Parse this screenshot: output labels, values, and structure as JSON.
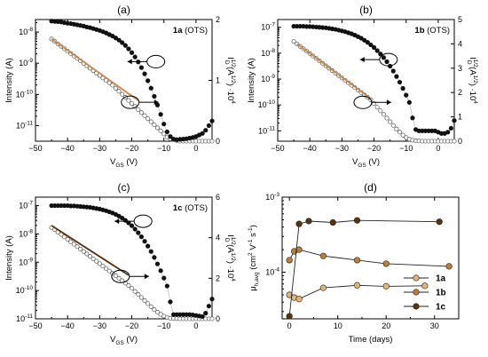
{
  "figure": {
    "panels": [
      {
        "id": "a",
        "letter": "(a)",
        "annotation": {
          "prefix": "1a",
          "suffix": " (OTS)"
        },
        "ylabel": "Intensity (A)",
        "xlabel": "V",
        "xlabel_sub": "GS",
        "xlabel_unit": " (V)",
        "right_label": "I",
        "right_label_sup": "1/2",
        "right_label_mid": " (A",
        "right_label_sup2": "1/2",
        "right_label_tail": ") ·10",
        "right_label_exp": "4",
        "right_label_sub": "D",
        "x_ticks": [
          "−50",
          "−40",
          "−30",
          "−20",
          "−10",
          "0"
        ],
        "y_ticks": [
          {
            "mant": "10",
            "exp": "-8"
          },
          {
            "mant": "10",
            "exp": "-9"
          },
          {
            "mant": "10",
            "exp": "-10"
          },
          {
            "mant": "10",
            "exp": "-11"
          }
        ],
        "y2_ticks": [
          "2",
          "1",
          "0"
        ]
      },
      {
        "id": "b",
        "letter": "(b)",
        "annotation": {
          "prefix": "1b",
          "suffix": " (OTS)"
        },
        "ylabel": "Intensity (A)",
        "xlabel": "V",
        "xlabel_sub": "GS",
        "xlabel_unit": " (V)",
        "right_label": "I",
        "right_label_sup": "1/2",
        "right_label_mid": " (A",
        "right_label_sup2": "1/2",
        "right_label_tail": ") ·10",
        "right_label_exp": "4",
        "right_label_sub": "D",
        "x_ticks": [
          "−50",
          "−40",
          "−30",
          "−20",
          "−10",
          "0"
        ],
        "y_ticks": [
          {
            "mant": "10",
            "exp": "-7"
          },
          {
            "mant": "10",
            "exp": "-8"
          },
          {
            "mant": "10",
            "exp": "-9"
          },
          {
            "mant": "10",
            "exp": "-10"
          },
          {
            "mant": "10",
            "exp": "-11"
          }
        ],
        "y2_ticks": [
          "5",
          "4",
          "3",
          "2",
          "1",
          "0"
        ]
      },
      {
        "id": "c",
        "letter": "(c)",
        "annotation": {
          "prefix": "1c",
          "suffix": " (OTS)"
        },
        "ylabel": "Intensity (A)",
        "xlabel": "V",
        "xlabel_sub": "GS",
        "xlabel_unit": " (V)",
        "right_label": "I",
        "right_label_sup": "1/2",
        "right_label_mid": " (A",
        "right_label_sup2": "1/2",
        "right_label_tail": ") ·10",
        "right_label_exp": "4",
        "right_label_sub": "D",
        "x_ticks": [
          "−50",
          "−40",
          "−30",
          "−20",
          "−10",
          "0"
        ],
        "y_ticks": [
          {
            "mant": "10",
            "exp": "-7"
          },
          {
            "mant": "10",
            "exp": "-8"
          },
          {
            "mant": "10",
            "exp": "-9"
          },
          {
            "mant": "10",
            "exp": "-10"
          },
          {
            "mant": "10",
            "exp": "-11"
          }
        ],
        "y2_ticks": [
          "6",
          "4",
          "2",
          "0"
        ]
      },
      {
        "id": "d",
        "letter": "(d)",
        "ylabel_main": "μ",
        "ylabel_sub": "h,avg",
        "ylabel_unit": " (cm",
        "ylabel_sup1": "2",
        "ylabel_mid": " V",
        "ylabel_sup2": "-1",
        "ylabel_mid2": " s",
        "ylabel_sup3": "-1",
        "ylabel_close": ")",
        "xlabel": "Time (days)",
        "x_ticks": [
          "0",
          "10",
          "20",
          "30"
        ],
        "y_ticks": [
          {
            "mant": "10",
            "exp": "-3"
          },
          {
            "mant": "10",
            "exp": "-4"
          }
        ],
        "legend": [
          "1a",
          "1b",
          "1c"
        ]
      }
    ]
  },
  "chart_data": [
    {
      "type": "scatter",
      "panel": "(a)",
      "xlabel": "VGS (V)",
      "ylabel": "Intensity (A)",
      "y2label": "I_D^1/2 (A^1/2) ·10^4",
      "xlim": [
        -50,
        5
      ],
      "ylim_log": [
        -11.5,
        -7.6
      ],
      "y2lim": [
        0,
        2
      ],
      "series": [
        {
          "name": "Intensity",
          "marker": "filled-circle",
          "axis": "log",
          "x": [
            -45,
            -44,
            -43,
            -42,
            -41,
            -40,
            -39,
            -38,
            -37,
            -36,
            -35,
            -34,
            -33,
            -32,
            -31,
            -30,
            -29,
            -28,
            -27,
            -26,
            -25,
            -24,
            -23,
            -22,
            -21,
            -20,
            -19,
            -18,
            -17,
            -16,
            -15,
            -14,
            -13,
            -12,
            -11,
            -10,
            -9,
            -8,
            -7,
            -6,
            -5,
            -4,
            -3,
            -2,
            -1,
            0,
            1,
            2,
            3,
            4,
            5
          ],
          "y": [
            -7.65,
            -7.66,
            -7.67,
            -7.68,
            -7.7,
            -7.72,
            -7.73,
            -7.75,
            -7.77,
            -7.79,
            -7.81,
            -7.84,
            -7.86,
            -7.89,
            -7.92,
            -7.95,
            -7.99,
            -8.03,
            -8.08,
            -8.13,
            -8.19,
            -8.26,
            -8.34,
            -8.43,
            -8.54,
            -8.66,
            -8.8,
            -8.96,
            -9.14,
            -9.34,
            -9.56,
            -9.8,
            -10.06,
            -10.34,
            -10.64,
            -10.95,
            -11.2,
            -11.35,
            -11.43,
            -11.45,
            -11.44,
            -11.43,
            -11.42,
            -11.4,
            -11.38,
            -11.35,
            -11.3,
            -11.25,
            -11.15,
            -11.0,
            -10.85
          ]
        },
        {
          "name": "sqrt(ID)",
          "marker": "open-circle",
          "axis": "linear",
          "x": [
            -45,
            -44,
            -43,
            -42,
            -41,
            -40,
            -39,
            -38,
            -37,
            -36,
            -35,
            -34,
            -33,
            -32,
            -31,
            -30,
            -29,
            -28,
            -27,
            -26,
            -25,
            -24,
            -23,
            -22,
            -21,
            -20,
            -19,
            -18,
            -17,
            -16,
            -15,
            -14,
            -13,
            -12,
            -11,
            -10,
            -9,
            -8,
            -7,
            -6,
            -5,
            -4,
            -3,
            -2,
            -1,
            0,
            1,
            2,
            3,
            4,
            5
          ],
          "y": [
            1.68,
            1.64,
            1.6,
            1.56,
            1.52,
            1.48,
            1.44,
            1.4,
            1.36,
            1.32,
            1.28,
            1.24,
            1.2,
            1.16,
            1.12,
            1.08,
            1.04,
            1.0,
            0.96,
            0.92,
            0.87,
            0.82,
            0.77,
            0.72,
            0.67,
            0.62,
            0.57,
            0.52,
            0.47,
            0.42,
            0.37,
            0.32,
            0.27,
            0.22,
            0.17,
            0.12,
            0.07,
            0.04,
            0.02,
            0.01,
            0.0,
            0.0,
            0.0,
            0.0,
            0.0,
            0.0,
            0.0,
            0.0,
            0.0,
            0.0,
            0.0
          ]
        },
        {
          "name": "fit",
          "type": "line",
          "axis": "linear",
          "color": "#c8894a",
          "x": [
            -45,
            -18
          ],
          "y": [
            1.68,
            0.67
          ]
        }
      ],
      "annotations": [
        "1a (OTS)"
      ]
    },
    {
      "type": "scatter",
      "panel": "(b)",
      "xlabel": "VGS (V)",
      "ylabel": "Intensity (A)",
      "y2label": "I_D^1/2 (A^1/2) ·10^4",
      "xlim": [
        -50,
        5
      ],
      "ylim_log": [
        -11.4,
        -6.7
      ],
      "y2lim": [
        0,
        5
      ],
      "series": [
        {
          "name": "Intensity",
          "marker": "filled-circle",
          "axis": "log",
          "x": [
            -45,
            -44,
            -43,
            -42,
            -41,
            -40,
            -39,
            -38,
            -37,
            -36,
            -35,
            -34,
            -33,
            -32,
            -31,
            -30,
            -29,
            -28,
            -27,
            -26,
            -25,
            -24,
            -23,
            -22,
            -21,
            -20,
            -19,
            -18,
            -17,
            -16,
            -15,
            -14,
            -13,
            -12,
            -11,
            -10,
            -9,
            -8,
            -7,
            -6,
            -5,
            -4,
            -3,
            -2,
            -1,
            0,
            1,
            2,
            3,
            4,
            5
          ],
          "y": [
            -6.96,
            -6.96,
            -6.96,
            -6.96,
            -6.97,
            -6.97,
            -6.98,
            -6.99,
            -7.0,
            -7.01,
            -7.02,
            -7.04,
            -7.06,
            -7.08,
            -7.11,
            -7.14,
            -7.17,
            -7.21,
            -7.25,
            -7.3,
            -7.36,
            -7.42,
            -7.5,
            -7.58,
            -7.68,
            -7.78,
            -7.9,
            -8.03,
            -8.17,
            -8.33,
            -8.5,
            -8.69,
            -8.9,
            -9.12,
            -9.36,
            -9.62,
            -9.9,
            -10.5,
            -10.95,
            -11.0,
            -11.0,
            -11.0,
            -11.0,
            -11.0,
            -11.0,
            -11.05,
            -11.1,
            -11.1,
            -11.05,
            -10.9,
            -10.6
          ]
        },
        {
          "name": "sqrt(ID)",
          "marker": "open-circle",
          "axis": "linear",
          "x": [
            -45,
            -44,
            -43,
            -42,
            -41,
            -40,
            -39,
            -38,
            -37,
            -36,
            -35,
            -34,
            -33,
            -32,
            -31,
            -30,
            -29,
            -28,
            -27,
            -26,
            -25,
            -24,
            -23,
            -22,
            -21,
            -20,
            -19,
            -18,
            -17,
            -16,
            -15,
            -14,
            -13,
            -12,
            -11,
            -10,
            -9,
            -8,
            -7,
            -6,
            -5,
            -4,
            -3,
            -2,
            -1,
            0,
            1,
            2,
            3,
            4,
            5
          ],
          "y": [
            4.1,
            4.0,
            3.9,
            3.8,
            3.7,
            3.6,
            3.5,
            3.4,
            3.3,
            3.2,
            3.1,
            3.0,
            2.9,
            2.8,
            2.7,
            2.6,
            2.5,
            2.4,
            2.3,
            2.2,
            2.1,
            2.0,
            1.9,
            1.8,
            1.7,
            1.55,
            1.4,
            1.25,
            1.1,
            0.95,
            0.8,
            0.65,
            0.5,
            0.37,
            0.25,
            0.15,
            0.08,
            0.04,
            0.02,
            0.01,
            0.0,
            0.0,
            0.0,
            0.0,
            0.0,
            0.0,
            0.0,
            0.0,
            0.0,
            0.0,
            0.0
          ]
        },
        {
          "name": "fit",
          "type": "line",
          "axis": "linear",
          "color": "#c8894a",
          "x": [
            -44,
            -21
          ],
          "y": [
            4.0,
            1.75
          ]
        }
      ],
      "annotations": [
        "1b (OTS)"
      ]
    },
    {
      "type": "scatter",
      "panel": "(c)",
      "xlabel": "VGS (V)",
      "ylabel": "Intensity (A)",
      "y2label": "I_D^1/2 (A^1/2) ·10^4",
      "xlim": [
        -50,
        5
      ],
      "ylim_log": [
        -11.0,
        -6.7
      ],
      "y2lim": [
        0,
        6
      ],
      "series": [
        {
          "name": "Intensity",
          "marker": "filled-circle",
          "axis": "log",
          "x": [
            -45,
            -44,
            -43,
            -42,
            -41,
            -40,
            -39,
            -38,
            -37,
            -36,
            -35,
            -34,
            -33,
            -32,
            -31,
            -30,
            -29,
            -28,
            -27,
            -26,
            -25,
            -24,
            -23,
            -22,
            -21,
            -20,
            -19,
            -18,
            -17,
            -16,
            -15,
            -14,
            -13,
            -12,
            -11,
            -10,
            -9,
            -8,
            -7,
            -6,
            -5,
            -4,
            -3,
            -2,
            -1,
            0,
            1,
            2,
            3,
            4,
            5
          ],
          "y": [
            -7.0,
            -7.0,
            -7.0,
            -7.0,
            -7.0,
            -7.0,
            -7.01,
            -7.01,
            -7.02,
            -7.03,
            -7.04,
            -7.05,
            -7.06,
            -7.08,
            -7.1,
            -7.12,
            -7.15,
            -7.18,
            -7.22,
            -7.26,
            -7.31,
            -7.37,
            -7.44,
            -7.52,
            -7.61,
            -7.71,
            -7.83,
            -7.96,
            -8.1,
            -8.26,
            -8.43,
            -8.62,
            -8.83,
            -9.06,
            -9.3,
            -9.56,
            -9.84,
            -10.4,
            -10.85,
            -10.85,
            -10.85,
            -10.85,
            -10.85,
            -10.85,
            -10.86,
            -10.88,
            -10.9,
            -10.92,
            -10.8,
            -10.55,
            -10.3
          ]
        },
        {
          "name": "sqrt(ID)",
          "marker": "open-circle",
          "axis": "linear",
          "x": [
            -45,
            -44,
            -43,
            -42,
            -41,
            -40,
            -39,
            -38,
            -37,
            -36,
            -35,
            -34,
            -33,
            -32,
            -31,
            -30,
            -29,
            -28,
            -27,
            -26,
            -25,
            -24,
            -23,
            -22,
            -21,
            -20,
            -19,
            -18,
            -17,
            -16,
            -15,
            -14,
            -13,
            -12,
            -11,
            -10,
            -9,
            -8,
            -7,
            -6,
            -5,
            -4,
            -3,
            -2,
            -1,
            0,
            1,
            2,
            3,
            4,
            5
          ],
          "y": [
            4.5,
            4.4,
            4.28,
            4.16,
            4.04,
            3.92,
            3.8,
            3.68,
            3.56,
            3.44,
            3.32,
            3.2,
            3.08,
            2.96,
            2.84,
            2.72,
            2.6,
            2.48,
            2.36,
            2.24,
            2.12,
            2.0,
            1.88,
            1.76,
            1.64,
            1.5,
            1.35,
            1.2,
            1.05,
            0.9,
            0.75,
            0.6,
            0.45,
            0.33,
            0.22,
            0.13,
            0.07,
            0.03,
            0.02,
            0.01,
            0.0,
            0.0,
            0.0,
            0.0,
            0.0,
            0.0,
            0.0,
            0.0,
            0.0,
            0.0,
            0.0
          ]
        },
        {
          "name": "fit",
          "type": "line",
          "axis": "linear",
          "color": "#5a3210",
          "x": [
            -45,
            -21
          ],
          "y": [
            4.6,
            2.15
          ]
        }
      ],
      "annotations": [
        "1c (OTS)"
      ]
    },
    {
      "type": "line",
      "panel": "(d)",
      "xlabel": "Time (days)",
      "ylabel": "μh,avg (cm2 V-1 s-1)",
      "xlim": [
        -1.5,
        35
      ],
      "ylim_log": [
        -4.62,
        -3.0
      ],
      "series": [
        {
          "name": "1a",
          "color": "#e2b478",
          "x": [
            0,
            1,
            2,
            7,
            14,
            20,
            28
          ],
          "y": [
            5e-05,
            4.6e-05,
            4.4e-05,
            6.2e-05,
            6.7e-05,
            6.5e-05,
            6.6e-05
          ]
        },
        {
          "name": "1b",
          "color": "#bb7d3c",
          "x": [
            0,
            1,
            2,
            7,
            14,
            20,
            33
          ],
          "y": [
            0.000145,
            0.00019,
            0.0002,
            0.000165,
            0.000145,
            0.00013,
            0.00012
          ]
        },
        {
          "name": "1c",
          "color": "#5a3210",
          "x": [
            0,
            2,
            4,
            9,
            14,
            31
          ],
          "y": [
            2.6e-05,
            0.00044,
            0.00048,
            0.00046,
            0.00049,
            0.00047
          ]
        }
      ]
    }
  ]
}
